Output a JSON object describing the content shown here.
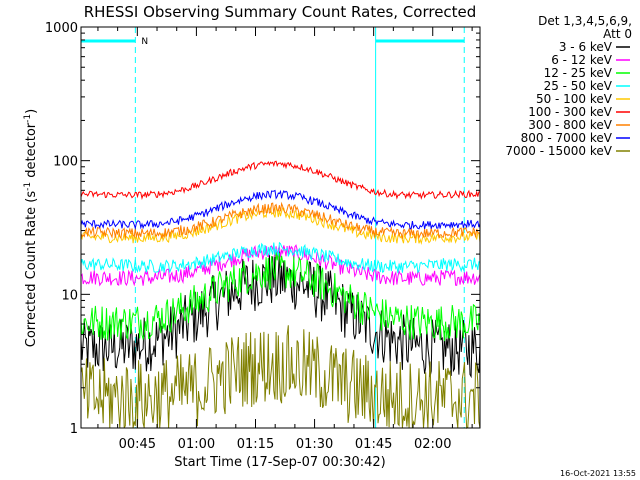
{
  "chart_data": {
    "type": "line",
    "title": "RHESSI Observing Summary Count Rates, Corrected",
    "xlabel": "Start Time (17-Sep-07 00:30:42)",
    "ylabel": "Corrected Count Rate (s⁻¹ detector⁻¹)",
    "ylabel_main": "Corrected Count Rate (s",
    "ylabel_sup1": "-1",
    "ylabel_mid": " detector",
    "ylabel_sup2": "-1",
    "ylabel_end": ")",
    "y_scale": "log",
    "ylim": [
      1,
      1000
    ],
    "xlim_minutes": [
      30.7,
      132
    ],
    "y_ticks": [
      {
        "value": 1,
        "label": "1"
      },
      {
        "value": 10,
        "label": "10"
      },
      {
        "value": 100,
        "label": "100"
      },
      {
        "value": 1000,
        "label": "1000"
      }
    ],
    "x_ticks": [
      {
        "minutes": 45,
        "label": "00:45"
      },
      {
        "minutes": 60,
        "label": "01:00"
      },
      {
        "minutes": 75,
        "label": "01:15"
      },
      {
        "minutes": 90,
        "label": "01:30"
      },
      {
        "minutes": 105,
        "label": "01:45"
      },
      {
        "minutes": 120,
        "label": "02:00"
      }
    ],
    "legend_position": "right",
    "legend_header": [
      "Det 1,3,4,5,6,9,",
      "Att 0"
    ],
    "series": [
      {
        "name": "3 - 6 keV",
        "color": "#000000",
        "base": 3.5,
        "peak": 13,
        "noise": 0.22
      },
      {
        "name": "6 - 12 keV",
        "color": "#ff00ff",
        "base": 12,
        "peak": 21,
        "noise": 0.06
      },
      {
        "name": "12 - 25 keV",
        "color": "#00ff00",
        "base": 5.5,
        "peak": 15,
        "noise": 0.14
      },
      {
        "name": "25 - 50 keV",
        "color": "#00ffff",
        "base": 15,
        "peak": 22,
        "noise": 0.05
      },
      {
        "name": "50 - 100 keV",
        "color": "#ffc800",
        "base": 24,
        "peak": 41,
        "noise": 0.04
      },
      {
        "name": "100 - 300 keV",
        "color": "#ff0000",
        "base": 50,
        "peak": 95,
        "noise": 0.025
      },
      {
        "name": "300 - 800 keV",
        "color": "#ff8000",
        "base": 26,
        "peak": 44,
        "noise": 0.04
      },
      {
        "name": "800 - 7000 keV",
        "color": "#0000ff",
        "base": 30,
        "peak": 56,
        "noise": 0.03
      },
      {
        "name": "7000 - 15000 keV",
        "color": "#808000",
        "base": 1.5,
        "peak": 3,
        "noise": 0.3
      }
    ],
    "peak_minutes": 80,
    "peak_width_minutes": 14,
    "flags": [
      {
        "label": "N",
        "start_minutes": 30.7,
        "end_minutes": 44.5
      },
      {
        "label": "",
        "start_minutes": 105.5,
        "end_minutes": 128
      }
    ]
  },
  "timestamp": "16-Oct-2021 13:55"
}
